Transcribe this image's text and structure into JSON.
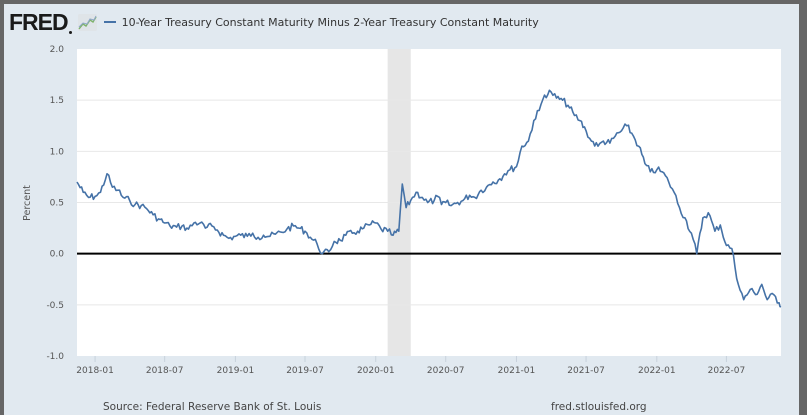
{
  "header": {
    "logo_text": "FRED",
    "logo_icon": "line-graph-icon",
    "legend_label": "10-Year Treasury Constant Maturity Minus 2-Year Treasury Constant Maturity",
    "series_color": "#4572a7"
  },
  "footer": {
    "source": "Source: Federal Reserve Bank of St. Louis",
    "site": "fred.stlouisfed.org"
  },
  "chart_data": {
    "type": "line",
    "title": "10-Year Treasury Constant Maturity Minus 2-Year Treasury Constant Maturity",
    "xlabel": "",
    "ylabel": "Percent",
    "ylim": [
      -1.0,
      2.0
    ],
    "xlim": [
      "2017-11-15",
      "2022-11-20"
    ],
    "yticks": [
      2.0,
      1.5,
      1.0,
      0.5,
      0.0,
      -0.5,
      -1.0
    ],
    "ytick_labels": [
      "2.0",
      "1.5",
      "1.0",
      "0.5",
      "0.0",
      "-0.5",
      "-1.0"
    ],
    "xticks": [
      "2018-01",
      "2018-07",
      "2019-01",
      "2019-07",
      "2020-01",
      "2020-07",
      "2021-01",
      "2021-07",
      "2022-01",
      "2022-07"
    ],
    "grid": true,
    "legend": "top-left",
    "reference_line": 0.0,
    "recession_shading": [
      {
        "start": "2020-02",
        "end": "2020-04"
      }
    ],
    "series": [
      {
        "name": "10-Year Treasury Constant Maturity Minus 2-Year Treasury Constant Maturity",
        "color": "#4572a7",
        "x": [
          "2017-11-15",
          "2017-12-01",
          "2017-12-15",
          "2018-01-01",
          "2018-01-15",
          "2018-02-01",
          "2018-02-15",
          "2018-03-01",
          "2018-03-15",
          "2018-04-01",
          "2018-04-15",
          "2018-05-01",
          "2018-05-15",
          "2018-06-01",
          "2018-06-15",
          "2018-07-01",
          "2018-07-15",
          "2018-08-01",
          "2018-08-15",
          "2018-09-01",
          "2018-09-15",
          "2018-10-01",
          "2018-10-15",
          "2018-11-01",
          "2018-11-15",
          "2018-12-01",
          "2018-12-15",
          "2019-01-01",
          "2019-01-15",
          "2019-02-01",
          "2019-02-15",
          "2019-03-01",
          "2019-03-15",
          "2019-04-01",
          "2019-04-15",
          "2019-05-01",
          "2019-05-15",
          "2019-06-01",
          "2019-06-15",
          "2019-07-01",
          "2019-07-15",
          "2019-08-01",
          "2019-08-15",
          "2019-09-01",
          "2019-09-15",
          "2019-10-01",
          "2019-10-15",
          "2019-11-01",
          "2019-11-15",
          "2019-12-01",
          "2019-12-15",
          "2020-01-01",
          "2020-01-15",
          "2020-02-01",
          "2020-02-15",
          "2020-03-01",
          "2020-03-10",
          "2020-03-20",
          "2020-04-01",
          "2020-04-15",
          "2020-05-01",
          "2020-05-15",
          "2020-06-01",
          "2020-06-10",
          "2020-06-20",
          "2020-07-01",
          "2020-07-15",
          "2020-08-01",
          "2020-08-15",
          "2020-09-01",
          "2020-09-15",
          "2020-10-01",
          "2020-10-15",
          "2020-11-01",
          "2020-11-15",
          "2020-12-01",
          "2020-12-15",
          "2021-01-01",
          "2021-01-15",
          "2021-02-01",
          "2021-02-15",
          "2021-03-01",
          "2021-03-15",
          "2021-04-01",
          "2021-04-15",
          "2021-05-01",
          "2021-05-15",
          "2021-06-01",
          "2021-06-15",
          "2021-07-01",
          "2021-07-15",
          "2021-08-01",
          "2021-08-15",
          "2021-09-01",
          "2021-09-15",
          "2021-10-01",
          "2021-10-15",
          "2021-11-01",
          "2021-11-15",
          "2021-12-01",
          "2021-12-15",
          "2022-01-01",
          "2022-01-15",
          "2022-02-01",
          "2022-02-15",
          "2022-03-01",
          "2022-03-15",
          "2022-04-01",
          "2022-04-15",
          "2022-05-01",
          "2022-05-15",
          "2022-06-01",
          "2022-06-15",
          "2022-07-01",
          "2022-07-15",
          "2022-08-01",
          "2022-08-15",
          "2022-09-01",
          "2022-09-15",
          "2022-10-01",
          "2022-10-15",
          "2022-11-01",
          "2022-11-15",
          "2022-11-20"
        ],
        "values": [
          0.7,
          0.6,
          0.55,
          0.56,
          0.6,
          0.78,
          0.65,
          0.62,
          0.55,
          0.52,
          0.48,
          0.47,
          0.44,
          0.38,
          0.34,
          0.3,
          0.27,
          0.26,
          0.27,
          0.24,
          0.3,
          0.3,
          0.25,
          0.27,
          0.23,
          0.18,
          0.15,
          0.17,
          0.18,
          0.17,
          0.2,
          0.16,
          0.18,
          0.17,
          0.19,
          0.21,
          0.24,
          0.27,
          0.25,
          0.22,
          0.16,
          0.1,
          0.0,
          0.02,
          0.12,
          0.13,
          0.18,
          0.2,
          0.22,
          0.25,
          0.28,
          0.3,
          0.24,
          0.22,
          0.18,
          0.22,
          0.68,
          0.45,
          0.52,
          0.6,
          0.55,
          0.5,
          0.52,
          0.56,
          0.48,
          0.5,
          0.47,
          0.5,
          0.52,
          0.57,
          0.55,
          0.62,
          0.65,
          0.7,
          0.72,
          0.78,
          0.82,
          0.85,
          1.05,
          1.1,
          1.3,
          1.4,
          1.55,
          1.58,
          1.52,
          1.5,
          1.45,
          1.35,
          1.3,
          1.2,
          1.1,
          1.05,
          1.1,
          1.08,
          1.15,
          1.2,
          1.25,
          1.15,
          1.05,
          0.88,
          0.8,
          0.82,
          0.8,
          0.7,
          0.6,
          0.45,
          0.35,
          0.2,
          0.0,
          0.35,
          0.4,
          0.22,
          0.28,
          0.08,
          0.05,
          -0.3,
          -0.45,
          -0.35,
          -0.4,
          -0.3,
          -0.45,
          -0.4,
          -0.48,
          -0.52
        ]
      }
    ]
  }
}
